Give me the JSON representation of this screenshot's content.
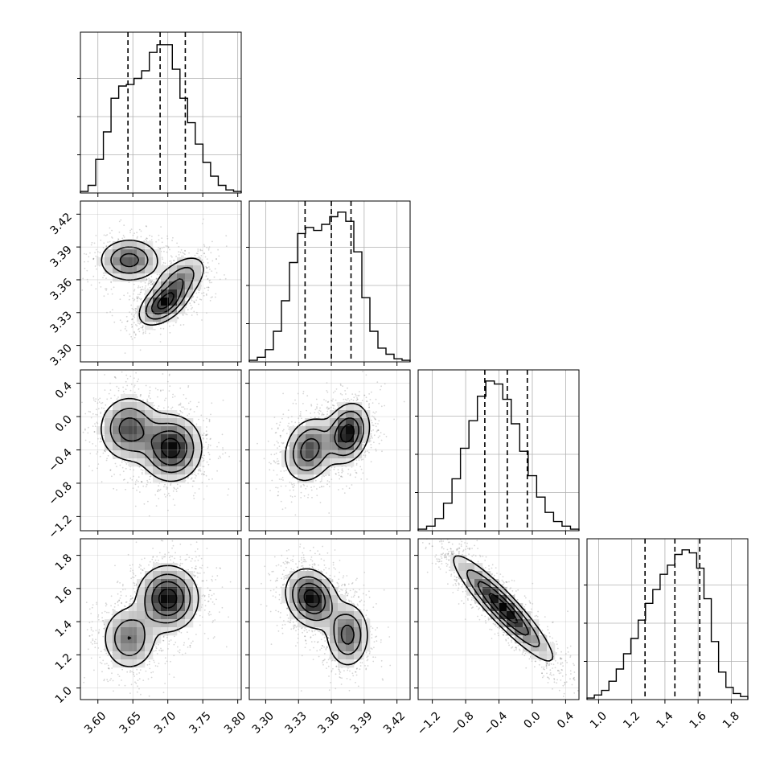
{
  "chart_data": {
    "type": "corner",
    "parameters": [
      {
        "range": [
          3.575,
          3.805
        ],
        "ticks": [
          "3.60",
          "3.65",
          "3.70",
          "3.75",
          "3.80"
        ],
        "tick_values": [
          3.6,
          3.65,
          3.7,
          3.75,
          3.8
        ],
        "quantiles": [
          3.643,
          3.689,
          3.725
        ]
      },
      {
        "range": [
          3.285,
          3.432
        ],
        "ticks": [
          "3.30",
          "3.33",
          "3.36",
          "3.39",
          "3.42"
        ],
        "tick_values": [
          3.3,
          3.33,
          3.36,
          3.39,
          3.42
        ],
        "quantiles": [
          3.336,
          3.36,
          3.378
        ]
      },
      {
        "range": [
          -1.37,
          0.56
        ],
        "ticks": [
          "−1.2",
          "−0.8",
          "−0.4",
          "0.0",
          "0.4"
        ],
        "tick_values": [
          -1.2,
          -0.8,
          -0.4,
          0.0,
          0.4
        ],
        "quantiles": [
          -0.57,
          -0.3,
          -0.06
        ]
      },
      {
        "range": [
          0.93,
          1.9
        ],
        "ticks": [
          "1.0",
          "1.2",
          "1.4",
          "1.6",
          "1.8"
        ],
        "tick_values": [
          1.0,
          1.2,
          1.4,
          1.6,
          1.8
        ],
        "quantiles": [
          1.28,
          1.46,
          1.61
        ]
      }
    ],
    "histograms": [
      [
        0.01,
        0.05,
        0.22,
        0.4,
        0.62,
        0.7,
        0.71,
        0.75,
        0.8,
        0.92,
        0.97,
        0.97,
        0.81,
        0.62,
        0.46,
        0.32,
        0.2,
        0.11,
        0.05,
        0.02,
        0.01
      ],
      [
        0.01,
        0.03,
        0.08,
        0.2,
        0.4,
        0.65,
        0.84,
        0.88,
        0.86,
        0.9,
        0.95,
        0.98,
        0.92,
        0.72,
        0.42,
        0.2,
        0.09,
        0.05,
        0.02,
        0.01
      ],
      [
        0.01,
        0.03,
        0.08,
        0.18,
        0.34,
        0.54,
        0.72,
        0.88,
        0.98,
        0.96,
        0.86,
        0.7,
        0.52,
        0.36,
        0.22,
        0.12,
        0.06,
        0.03,
        0.01
      ],
      [
        0.01,
        0.03,
        0.06,
        0.12,
        0.2,
        0.3,
        0.4,
        0.52,
        0.63,
        0.72,
        0.82,
        0.88,
        0.95,
        0.98,
        0.96,
        0.86,
        0.66,
        0.38,
        0.18,
        0.08,
        0.04,
        0.02
      ]
    ],
    "density_modes": {
      "1-0": [
        {
          "x": 3.645,
          "y": 3.378,
          "sx": 0.022,
          "sy": 0.01,
          "rho": 0.0,
          "w": 0.8
        },
        {
          "x": 3.694,
          "y": 3.338,
          "sx": 0.018,
          "sy": 0.01,
          "rho": 0.5,
          "w": 1.0
        },
        {
          "x": 3.718,
          "y": 3.36,
          "sx": 0.02,
          "sy": 0.012,
          "rho": 0.5,
          "w": 0.6
        }
      ],
      "2-0": [
        {
          "x": 3.645,
          "y": -0.15,
          "sx": 0.022,
          "sy": 0.2,
          "rho": 0.0,
          "w": 0.75
        },
        {
          "x": 3.705,
          "y": -0.38,
          "sx": 0.022,
          "sy": 0.2,
          "rho": 0.0,
          "w": 1.0
        }
      ],
      "2-1": [
        {
          "x": 3.34,
          "y": -0.4,
          "sx": 0.012,
          "sy": 0.2,
          "rho": 0.2,
          "w": 0.75
        },
        {
          "x": 3.375,
          "y": -0.2,
          "sx": 0.01,
          "sy": 0.18,
          "rho": 0.2,
          "w": 1.0
        }
      ],
      "3-0": [
        {
          "x": 3.645,
          "y": 1.3,
          "sx": 0.02,
          "sy": 0.1,
          "rho": 0.0,
          "w": 0.6
        },
        {
          "x": 3.7,
          "y": 1.54,
          "sx": 0.022,
          "sy": 0.1,
          "rho": 0.0,
          "w": 1.0
        }
      ],
      "3-1": [
        {
          "x": 3.342,
          "y": 1.54,
          "sx": 0.012,
          "sy": 0.09,
          "rho": -0.2,
          "w": 1.0
        },
        {
          "x": 3.375,
          "y": 1.32,
          "sx": 0.01,
          "sy": 0.1,
          "rho": 0.0,
          "w": 0.7
        }
      ],
      "3-2": [
        {
          "x": -0.35,
          "y": 1.48,
          "sx": 0.3,
          "sy": 0.16,
          "rho": -0.92,
          "w": 1.0
        }
      ]
    },
    "contour_levels": [
      0.14,
      0.35,
      0.6,
      0.85
    ],
    "grid": true
  }
}
